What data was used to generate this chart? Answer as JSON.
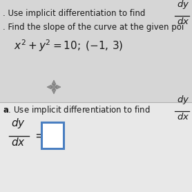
{
  "figsize": [
    2.78,
    2.78
  ],
  "dpi": 100,
  "bg_top": "#d6d6d6",
  "bg_bottom": "#e8e8e8",
  "divider_color": "#b0b0b0",
  "text_color": "#1a1a1a",
  "box_edge_color": "#4a7fc1",
  "box_face_color": "#ffffff",
  "line1_top": ". Use implicit differentiation to find",
  "line2_top": ". Find the slope of the curve at the given poi",
  "line3_top": "$x^2+y^2=10;\\;(-1,3)$",
  "label_a_bottom": "a. Use implicit differentiation to find",
  "dy_frac_top": "$\\dfrac{dy}{dx}$",
  "dy_eq": "$\\dfrac{dy}{dx}=$",
  "font_size_main": 8.5,
  "font_size_eq": 9.5,
  "font_size_math": 10
}
